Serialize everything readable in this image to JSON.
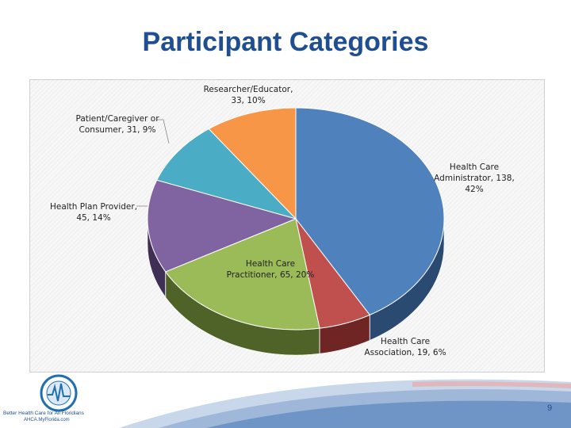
{
  "slide": {
    "title": "Participant Categories",
    "page_number": "9",
    "logo_caption_line1": "Better Health Care for All Floridians",
    "logo_caption_line2": "AHCA.MyFlorida.com"
  },
  "chart_data": {
    "type": "pie",
    "title": "",
    "three_d": true,
    "slices": [
      {
        "name": "Health Care Administrator",
        "value": 138,
        "percent": 42,
        "label_lines": [
          "Health Care",
          "Administrator, 138,",
          "42%"
        ],
        "color": "#4f81bd",
        "side_color": "#2b4a72"
      },
      {
        "name": "Health Care Association",
        "value": 19,
        "percent": 6,
        "label_lines": [
          "Health Care",
          "Association, 19, 6%"
        ],
        "color": "#c0504d",
        "side_color": "#6e2523"
      },
      {
        "name": "Health Care Practitioner",
        "value": 65,
        "percent": 20,
        "label_lines": [
          "Health Care",
          "Practitioner, 65, 20%"
        ],
        "color": "#9bbb59",
        "side_color": "#4f6328"
      },
      {
        "name": "Health Plan Provider",
        "value": 45,
        "percent": 14,
        "label_lines": [
          "Health Plan Provider,",
          "45, 14%"
        ],
        "color": "#8064a2",
        "side_color": "#3f2f55"
      },
      {
        "name": "Patient/Caregiver or Consumer",
        "value": 31,
        "percent": 9,
        "label_lines": [
          "Patient/Caregiver or",
          "Consumer, 31, 9%"
        ],
        "color": "#4bacc6",
        "side_color": "#225a69"
      },
      {
        "name": "Researcher/Educator",
        "value": 33,
        "percent": 10,
        "label_lines": [
          "Researcher/Educator,",
          "33, 10%"
        ],
        "color": "#f79646",
        "side_color": "#8a4c17"
      }
    ]
  }
}
